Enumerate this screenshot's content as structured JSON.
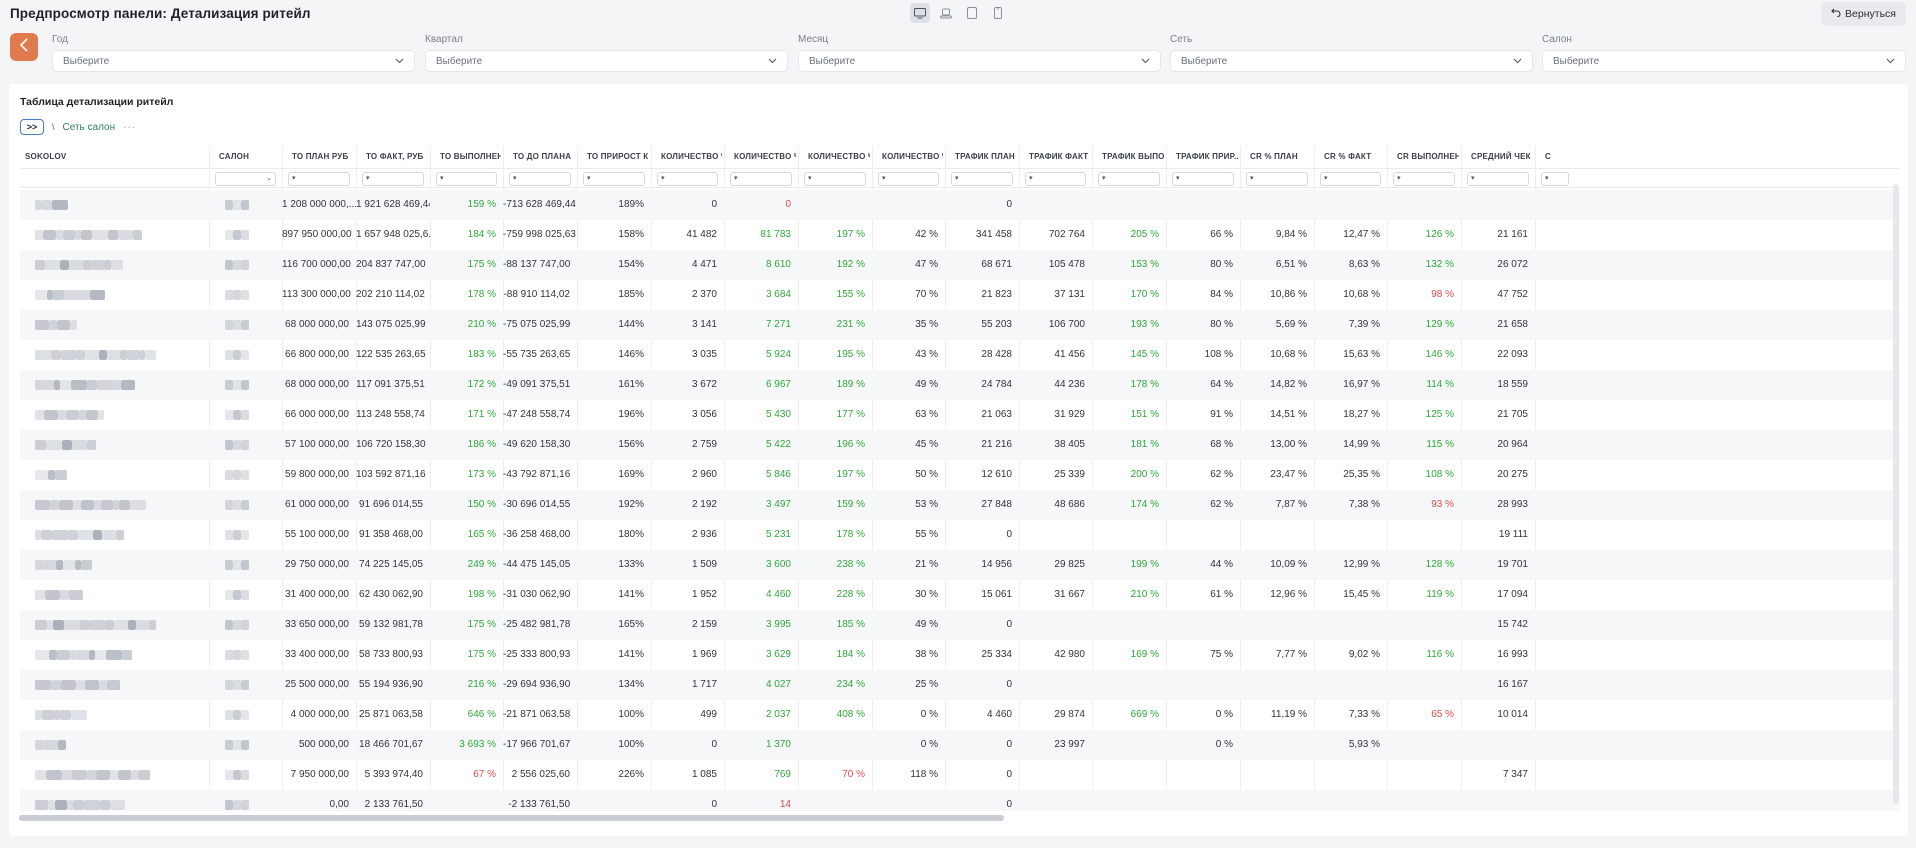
{
  "app": {
    "title": "Предпросмотр панели: Детализация ритейл",
    "back_label": "Вернуться"
  },
  "filters": [
    {
      "label": "Год",
      "placeholder": "Выберите"
    },
    {
      "label": "Квартал",
      "placeholder": "Выберите"
    },
    {
      "label": "Месяц",
      "placeholder": "Выберите"
    },
    {
      "label": "Сеть",
      "placeholder": "Выберите"
    },
    {
      "label": "Салон",
      "placeholder": "Выберите"
    }
  ],
  "card": {
    "title": "Таблица детализации ритейл",
    "breadcrumb_level": "Сеть салон",
    "expand_label": ">>",
    "more_label": "···"
  },
  "columns": [
    "SOKOLOV",
    "САЛОН",
    "ТО ПЛАН РУБ",
    "ТО ФАКТ, РУБ",
    "ТО ВЫПОЛНЕН...",
    "ТО ДО ПЛАНА",
    "ТО ПРИРОСТ К ...",
    "КОЛИЧЕСТВО Ч...",
    "КОЛИЧЕСТВО Ч...",
    "КОЛИЧЕСТВО Ч...",
    "КОЛИЧЕСТВО Ч...",
    "ТРАФИК ПЛАН",
    "ТРАФИК ФАКТ",
    "ТРАФИК ВЫПО...",
    "ТРАФИК ПРИР...",
    "CR % ПЛАН",
    "CR % ФАКТ",
    "CR ВЫПОЛНЕН...",
    "СРЕДНИЙ ЧЕК ...",
    "С"
  ],
  "rows": [
    [
      "1 208 000 000,...",
      "1 921 628 469,44",
      "159 %",
      "-713 628 469,44",
      "189%",
      "0",
      "0",
      "",
      "",
      "0",
      "",
      "",
      "",
      "",
      "",
      "",
      ""
    ],
    [
      "897 950 000,00",
      "1 657 948 025,6...",
      "184 %",
      "-759 998 025,63",
      "158%",
      "41 482",
      "81 783",
      "197 %",
      "42 %",
      "341 458",
      "702 764",
      "205 %",
      "66 %",
      "9,84 %",
      "12,47 %",
      "126 %",
      "21 161"
    ],
    [
      "116 700 000,00",
      "204 837 747,00",
      "175 %",
      "-88 137 747,00",
      "154%",
      "4 471",
      "8 610",
      "192 %",
      "47 %",
      "68 671",
      "105 478",
      "153 %",
      "80 %",
      "6,51 %",
      "8,63 %",
      "132 %",
      "26 072"
    ],
    [
      "113 300 000,00",
      "202 210 114,02",
      "178 %",
      "-88 910 114,02",
      "185%",
      "2 370",
      "3 684",
      "155 %",
      "70 %",
      "21 823",
      "37 131",
      "170 %",
      "84 %",
      "10,86 %",
      "10,68 %",
      "98 %",
      "47 752"
    ],
    [
      "68 000 000,00",
      "143 075 025,99",
      "210 %",
      "-75 075 025,99",
      "144%",
      "3 141",
      "7 271",
      "231 %",
      "35 %",
      "55 203",
      "106 700",
      "193 %",
      "80 %",
      "5,69 %",
      "7,39 %",
      "129 %",
      "21 658"
    ],
    [
      "66 800 000,00",
      "122 535 263,65",
      "183 %",
      "-55 735 263,65",
      "146%",
      "3 035",
      "5 924",
      "195 %",
      "43 %",
      "28 428",
      "41 456",
      "145 %",
      "108 %",
      "10,68 %",
      "15,63 %",
      "146 %",
      "22 093"
    ],
    [
      "68 000 000,00",
      "117 091 375,51",
      "172 %",
      "-49 091 375,51",
      "161%",
      "3 672",
      "6 967",
      "189 %",
      "49 %",
      "24 784",
      "44 236",
      "178 %",
      "64 %",
      "14,82 %",
      "16,97 %",
      "114 %",
      "18 559"
    ],
    [
      "66 000 000,00",
      "113 248 558,74",
      "171 %",
      "-47 248 558,74",
      "196%",
      "3 056",
      "5 430",
      "177 %",
      "63 %",
      "21 063",
      "31 929",
      "151 %",
      "91 %",
      "14,51 %",
      "18,27 %",
      "125 %",
      "21 705"
    ],
    [
      "57 100 000,00",
      "106 720 158,30",
      "186 %",
      "-49 620 158,30",
      "156%",
      "2 759",
      "5 422",
      "196 %",
      "45 %",
      "21 216",
      "38 405",
      "181 %",
      "68 %",
      "13,00 %",
      "14,99 %",
      "115 %",
      "20 964"
    ],
    [
      "59 800 000,00",
      "103 592 871,16",
      "173 %",
      "-43 792 871,16",
      "169%",
      "2 960",
      "5 846",
      "197 %",
      "50 %",
      "12 610",
      "25 339",
      "200 %",
      "62 %",
      "23,47 %",
      "25,35 %",
      "108 %",
      "20 275"
    ],
    [
      "61 000 000,00",
      "91 696 014,55",
      "150 %",
      "-30 696 014,55",
      "192%",
      "2 192",
      "3 497",
      "159 %",
      "53 %",
      "27 848",
      "48 686",
      "174 %",
      "62 %",
      "7,87 %",
      "7,38 %",
      "93 %",
      "28 993"
    ],
    [
      "55 100 000,00",
      "91 358 468,00",
      "165 %",
      "-36 258 468,00",
      "180%",
      "2 936",
      "5 231",
      "178 %",
      "55 %",
      "0",
      "",
      "",
      "",
      "",
      "",
      "",
      "19 111"
    ],
    [
      "29 750 000,00",
      "74 225 145,05",
      "249 %",
      "-44 475 145,05",
      "133%",
      "1 509",
      "3 600",
      "238 %",
      "21 %",
      "14 956",
      "29 825",
      "199 %",
      "44 %",
      "10,09 %",
      "12,99 %",
      "128 %",
      "19 701"
    ],
    [
      "31 400 000,00",
      "62 430 062,90",
      "198 %",
      "-31 030 062,90",
      "141%",
      "1 952",
      "4 460",
      "228 %",
      "30 %",
      "15 061",
      "31 667",
      "210 %",
      "61 %",
      "12,96 %",
      "15,45 %",
      "119 %",
      "17 094"
    ],
    [
      "33 650 000,00",
      "59 132 981,78",
      "175 %",
      "-25 482 981,78",
      "165%",
      "2 159",
      "3 995",
      "185 %",
      "49 %",
      "0",
      "",
      "",
      "",
      "",
      "",
      "",
      "15 742"
    ],
    [
      "33 400 000,00",
      "58 733 800,93",
      "175 %",
      "-25 333 800,93",
      "141%",
      "1 969",
      "3 629",
      "184 %",
      "38 %",
      "25 334",
      "42 980",
      "169 %",
      "75 %",
      "7,77 %",
      "9,02 %",
      "116 %",
      "16 993"
    ],
    [
      "25 500 000,00",
      "55 194 936,90",
      "216 %",
      "-29 694 936,90",
      "134%",
      "1 717",
      "4 027",
      "234 %",
      "25 %",
      "0",
      "",
      "",
      "",
      "",
      "",
      "",
      "16 167"
    ],
    [
      "4 000 000,00",
      "25 871 063,58",
      "646 %",
      "-21 871 063,58",
      "100%",
      "499",
      "2 037",
      "408 %",
      "0 %",
      "4 460",
      "29 874",
      "669 %",
      "0 %",
      "11,19 %",
      "7,33 %",
      "65 %",
      "10 014"
    ],
    [
      "500 000,00",
      "18 466 701,67",
      "3 693 %",
      "-17 966 701,67",
      "100%",
      "0",
      "1 370",
      "",
      "0 %",
      "0",
      "23 997",
      "",
      "0 %",
      "",
      "5,93 %",
      "",
      ""
    ],
    [
      "7 950 000,00",
      "5 393 974,40",
      "67 %",
      "2 556 025,60",
      "226%",
      "1 085",
      "769",
      "70 %",
      "118 %",
      "0",
      "",
      "",
      "",
      "",
      "",
      "",
      "7 347"
    ],
    [
      "0,00",
      "2 133 761,50",
      "",
      "-2 133 761,50",
      "",
      "0",
      "14",
      "",
      "",
      "0",
      "",
      "",
      "",
      "",
      "",
      "",
      ""
    ]
  ],
  "colors": {
    "accent": "#e07a4f",
    "positive": "#2fa83a",
    "negative": "#e04b4b",
    "link": "#2e7d6b"
  }
}
